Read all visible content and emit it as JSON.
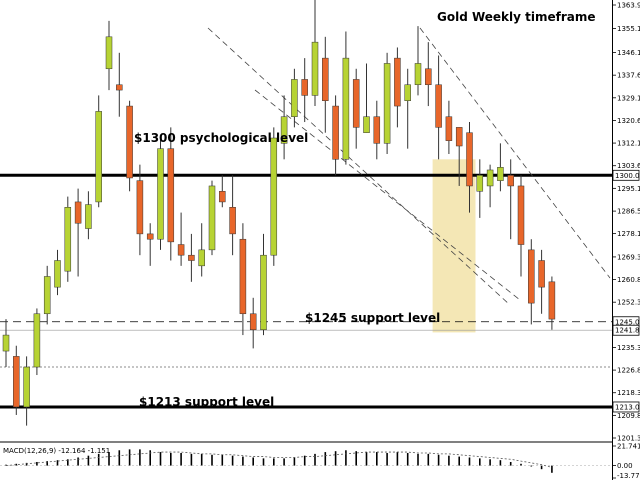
{
  "chart_data": [
    {
      "type": "candlestick",
      "title": "Gold Weekly timeframe",
      "ylim": [
        1201.35,
        1363.95
      ],
      "y_ticks": [
        "1363.95",
        "1355.15",
        "1346.10",
        "1337.60",
        "1329.10",
        "1320.60",
        "1312.10",
        "1303.60",
        "1295.10",
        "1286.55",
        "1278.10",
        "1269.35",
        "1260.85",
        "1252.35",
        "1235.35",
        "1226.85",
        "1218.35",
        "1209.85",
        "1201.35"
      ],
      "price_tags": [
        {
          "label": "1300.00",
          "value": 1300.0
        },
        {
          "label": "1245.00",
          "value": 1245.0
        },
        {
          "label": "1241.82",
          "value": 1241.82
        },
        {
          "label": "1213.00",
          "value": 1213.0
        }
      ],
      "horizontal_lines": [
        {
          "value": 1300.0,
          "style": "thick"
        },
        {
          "value": 1213.0,
          "style": "thick"
        },
        {
          "value": 1245.0,
          "style": "dashed"
        },
        {
          "value": 1241.82,
          "style": "thin"
        },
        {
          "value": 1228.0,
          "style": "dotted"
        }
      ],
      "annotations": [
        {
          "text": "$1300 psychological level"
        },
        {
          "text": "$1245 support level"
        },
        {
          "text": "$1213 support level"
        }
      ],
      "highlight_box": {
        "from_candle": 42,
        "to_candle": 45,
        "y_range": [
          1241.0,
          1306.0
        ],
        "color": "#f2e3a8"
      },
      "colors": {
        "bull": "#b7d334",
        "bear": "#e8662a",
        "wick": "#333333",
        "highlight": "#f2e3a8"
      },
      "candles": [
        [
          1234,
          1240,
          1228,
          1246
        ],
        [
          1232,
          1213,
          1210,
          1236
        ],
        [
          1213,
          1228,
          1206,
          1232
        ],
        [
          1228,
          1248,
          1225,
          1250
        ],
        [
          1248,
          1262,
          1244,
          1266
        ],
        [
          1258,
          1268,
          1255,
          1272
        ],
        [
          1264,
          1288,
          1260,
          1292
        ],
        [
          1290,
          1282,
          1262,
          1295
        ],
        [
          1280,
          1289,
          1276,
          1294
        ],
        [
          1290,
          1324,
          1288,
          1330
        ],
        [
          1340,
          1352,
          1332,
          1358
        ],
        [
          1334,
          1332,
          1322,
          1346
        ],
        [
          1326,
          1299,
          1294,
          1328
        ],
        [
          1298,
          1278,
          1270,
          1304
        ],
        [
          1278,
          1276,
          1266,
          1282
        ],
        [
          1276,
          1310,
          1272,
          1314
        ],
        [
          1310,
          1275,
          1268,
          1318
        ],
        [
          1274,
          1270,
          1266,
          1286
        ],
        [
          1270,
          1268,
          1260,
          1278
        ],
        [
          1266,
          1272,
          1262,
          1282
        ],
        [
          1272,
          1296,
          1270,
          1298
        ],
        [
          1294,
          1290,
          1288,
          1300
        ],
        [
          1288,
          1278,
          1270,
          1300
        ],
        [
          1276,
          1248,
          1240,
          1282
        ],
        [
          1248,
          1242,
          1235,
          1254
        ],
        [
          1242,
          1270,
          1240,
          1278
        ],
        [
          1270,
          1314,
          1266,
          1318
        ],
        [
          1312,
          1322,
          1306,
          1330
        ],
        [
          1322,
          1336,
          1318,
          1340
        ],
        [
          1336,
          1330,
          1320,
          1344
        ],
        [
          1330,
          1350,
          1326,
          1366
        ],
        [
          1344,
          1328,
          1316,
          1352
        ],
        [
          1326,
          1306,
          1300,
          1330
        ],
        [
          1306,
          1344,
          1304,
          1354
        ],
        [
          1336,
          1318,
          1310,
          1340
        ],
        [
          1316,
          1322,
          1316,
          1342
        ],
        [
          1322,
          1312,
          1306,
          1328
        ],
        [
          1312,
          1342,
          1308,
          1346
        ],
        [
          1344,
          1326,
          1318,
          1348
        ],
        [
          1328,
          1334,
          1310,
          1340
        ],
        [
          1334,
          1342,
          1330,
          1356
        ],
        [
          1340,
          1334,
          1326,
          1350
        ],
        [
          1334,
          1318,
          1306,
          1345
        ],
        [
          1322,
          1313,
          1308,
          1328
        ],
        [
          1318,
          1311,
          1296,
          1318
        ],
        [
          1316,
          1296,
          1286,
          1320
        ],
        [
          1294,
          1300,
          1284,
          1306
        ],
        [
          1296,
          1302,
          1288,
          1304
        ],
        [
          1298,
          1303,
          1294,
          1312
        ],
        [
          1300,
          1296,
          1276,
          1306
        ],
        [
          1296,
          1274,
          1262,
          1300
        ],
        [
          1272,
          1252,
          1244,
          1276
        ],
        [
          1268,
          1258,
          1248,
          1272
        ],
        [
          1260,
          1246,
          1242,
          1262
        ]
      ]
    },
    {
      "type": "bar",
      "title": "MACD(12,26,9) -12.164 -1.151",
      "y_ticks": [
        "21.741",
        "0.00",
        "-13.779"
      ],
      "ylim": [
        -13.779,
        21.741
      ],
      "values": [
        1,
        2,
        3,
        4,
        5,
        6,
        7,
        9,
        11,
        13,
        15,
        17,
        18,
        18,
        17,
        15,
        14,
        14,
        13,
        13,
        12,
        12,
        11,
        10,
        9,
        8,
        8,
        8,
        9,
        11,
        13,
        15,
        16,
        17,
        16,
        15,
        15,
        14,
        15,
        14,
        13,
        13,
        12,
        11,
        10,
        9,
        8,
        7,
        6,
        4,
        2,
        -1,
        -4,
        -8
      ],
      "signal": [
        0,
        1,
        2,
        3,
        4,
        5,
        6,
        7,
        8,
        9,
        10,
        11,
        12,
        13,
        14,
        15,
        15,
        15,
        14,
        13,
        13,
        12,
        12,
        11,
        10,
        10,
        9,
        9,
        9,
        10,
        10,
        11,
        12,
        13,
        14,
        15,
        15,
        15,
        15,
        15,
        14,
        14,
        13,
        13,
        12,
        11,
        10,
        9,
        8,
        7,
        5,
        3,
        1,
        -2
      ]
    }
  ]
}
